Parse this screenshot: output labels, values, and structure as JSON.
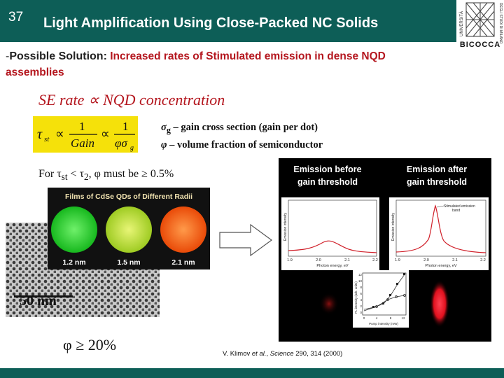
{
  "slide": {
    "number": "37",
    "title": "Light Amplification Using Close-Packed NC Solids"
  },
  "logo": {
    "left_text": "UNIVERSITÀ",
    "right_text": "DEGLI STUDI DI MILANO",
    "bottom_text": "BICOCCA"
  },
  "body": {
    "lead_prefix": "-",
    "lead_bold": "Possible Solution:",
    "lead_red": " Increased rates of Stimulated emission in dense NQD",
    "lead_red_cont": "assemblies",
    "se_rate": "SE rate ∝ NQD concentration",
    "formula": {
      "tau": "τ",
      "tau_sub": "st",
      "prop": "∝",
      "one": "1",
      "gain": "Gain",
      "phi_sigma": "φσ",
      "sigma_sub": "g"
    },
    "legend": {
      "line1_sym": "σ",
      "line1_sub": "g",
      "line1_text": " – gain cross section (gain per dot)",
      "line2_sym": "φ",
      "line2_text": " – volume fraction of semiconductor"
    },
    "condition": {
      "prefix": "For τ",
      "sub1": "st",
      "mid": " < τ",
      "sub2": "2",
      "suffix": ", φ must be ≥ 0.5%"
    },
    "phi_result": "φ  ≥  20%",
    "citation_prefix": "V. Klimov ",
    "citation_etal": "et al.",
    "citation_journal_sep": ", ",
    "citation_journal": "Science",
    "citation_suffix": " 290, 314 (2000)"
  },
  "films": {
    "title": "Films of CdSe QDs of Different Radii",
    "labels": [
      "1.2 nm",
      "1.5 nm",
      "2.1 nm"
    ],
    "colors": [
      "#2fd636",
      "#cfe63a",
      "#ff6a12"
    ]
  },
  "tem": {
    "scale_label": "50 nm"
  },
  "panel": {
    "left_heading_1": "Emission before",
    "left_heading_2": "gain threshold",
    "right_heading_1": "Emission after",
    "right_heading_2": "gain threshold",
    "left_plot": {
      "ylabel": "Emission intensity",
      "xlabel": "Photon energy, eV",
      "ticks": [
        "1.9",
        "2.0",
        "2.1",
        "2.2"
      ]
    },
    "right_plot": {
      "ylabel": "Emission intensity",
      "xlabel": "Photon energy, eV",
      "ticks": [
        "1.9",
        "2.0",
        "2.1",
        "2.2"
      ],
      "annotation_1": "Stimulated emission",
      "annotation_2": "band"
    },
    "inset": {
      "ylabel": "PL intensity (arb. units)",
      "xlabel": "Pump intensity (mW)",
      "yticks": [
        "12",
        "10",
        "8",
        "6",
        "4",
        "2",
        "0"
      ],
      "xticks": [
        "0",
        "4",
        "8",
        "12"
      ]
    }
  },
  "colors": {
    "header_bg": "#0d5e57",
    "accent_red": "#b4161e",
    "formula_bg": "#f5e10a"
  }
}
